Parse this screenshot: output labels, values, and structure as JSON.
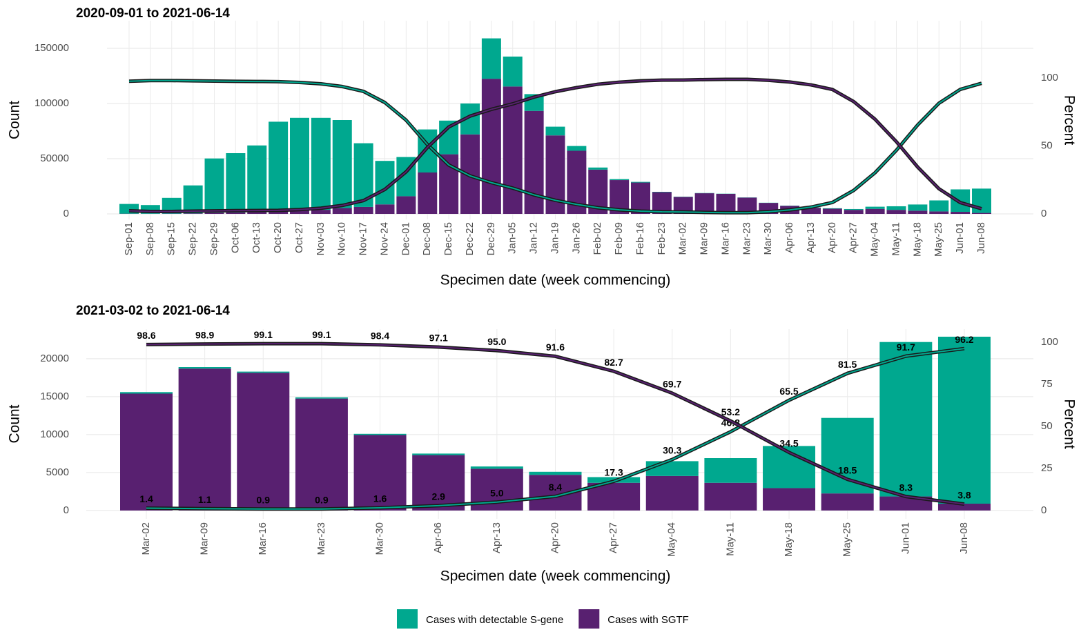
{
  "chart_data": [
    {
      "type": "bar",
      "title": "2020-09-01 to 2021-06-14",
      "x_label": "Specimen date (week commencing)",
      "y_label": "Count",
      "y2_label": "Percent",
      "categories": [
        "Sep-01",
        "Sep-08",
        "Sep-15",
        "Sep-22",
        "Sep-29",
        "Oct-06",
        "Oct-13",
        "Oct-20",
        "Oct-27",
        "Nov-03",
        "Nov-10",
        "Nov-17",
        "Nov-24",
        "Dec-01",
        "Dec-08",
        "Dec-15",
        "Dec-22",
        "Dec-29",
        "Jan-05",
        "Jan-12",
        "Jan-19",
        "Jan-26",
        "Feb-02",
        "Feb-09",
        "Feb-16",
        "Feb-23",
        "Mar-02",
        "Mar-09",
        "Mar-16",
        "Mar-23",
        "Mar-30",
        "Apr-06",
        "Apr-13",
        "Apr-20",
        "Apr-27",
        "May-04",
        "May-11",
        "May-18",
        "May-25",
        "Jun-01",
        "Jun-08"
      ],
      "series": [
        {
          "name": "Cases with SGTF",
          "color": "#582070",
          "values": [
            200,
            150,
            250,
            500,
            1100,
            1300,
            1600,
            2200,
            2800,
            3700,
            5300,
            6300,
            8600,
            16000,
            37500,
            54000,
            72000,
            122400,
            115400,
            93300,
            71100,
            57200,
            40100,
            30600,
            28400,
            19700,
            15400,
            18700,
            18150,
            14750,
            9950,
            7300,
            5500,
            4700,
            3650,
            4550,
            3650,
            2950,
            2250,
            1850,
            900
          ]
        },
        {
          "name": "Cases with detectable S-gene",
          "color": "#00a88f",
          "values": [
            8800,
            7850,
            14250,
            25300,
            49100,
            53700,
            60400,
            81300,
            84200,
            83300,
            79700,
            57700,
            39400,
            35500,
            39000,
            30500,
            28000,
            36600,
            27100,
            15200,
            7900,
            4300,
            1900,
            900,
            600,
            300,
            200,
            200,
            150,
            150,
            150,
            200,
            300,
            400,
            750,
            1950,
            3250,
            5550,
            9950,
            20350,
            22000
          ]
        }
      ],
      "lines": [
        {
          "color": "#00a88f",
          "outline": "#1a1a1a",
          "axis": "y2",
          "values": [
            97.7,
            98.2,
            98.2,
            98,
            97.8,
            97.6,
            97.5,
            97.4,
            96.8,
            95.8,
            93.8,
            90.2,
            82,
            69,
            51,
            36,
            28,
            23,
            19,
            14,
            10,
            7,
            4.5,
            3,
            2,
            1.5,
            1.4,
            1.1,
            0.9,
            0.9,
            1.6,
            2.9,
            5,
            8.4,
            17.3,
            30.3,
            46.8,
            65.5,
            81.5,
            91.7,
            96.2
          ]
        },
        {
          "color": "#582070",
          "outline": "#1a1a1a",
          "axis": "y2",
          "values": [
            2.3,
            1.8,
            1.8,
            2,
            2.2,
            2.4,
            2.5,
            2.6,
            3.2,
            4.2,
            6.2,
            9.8,
            18,
            31,
            49,
            64,
            72,
            77,
            81,
            86,
            90,
            93,
            95.5,
            97,
            98,
            98.5,
            98.6,
            98.9,
            99.1,
            99.1,
            98.4,
            97.1,
            95,
            91.6,
            82.7,
            69.7,
            53.2,
            34.5,
            18.5,
            8.3,
            3.8
          ]
        }
      ],
      "ylim": [
        -5000,
        175000
      ],
      "yticks": [
        0,
        50000,
        100000,
        150000
      ],
      "y2lim": [
        -4.07,
        142.28
      ],
      "y2ticks": [
        0,
        50,
        100
      ],
      "grid": true,
      "legend": "bottom"
    },
    {
      "type": "bar",
      "title": "2021-03-02 to 2021-06-14",
      "x_label": "Specimen date (week commencing)",
      "y_label": "Count",
      "y2_label": "Percent",
      "categories": [
        "Mar-02",
        "Mar-09",
        "Mar-16",
        "Mar-23",
        "Mar-30",
        "Apr-06",
        "Apr-13",
        "Apr-20",
        "Apr-27",
        "May-04",
        "May-11",
        "May-18",
        "May-25",
        "Jun-01",
        "Jun-08"
      ],
      "series": [
        {
          "name": "Cases with SGTF",
          "color": "#582070",
          "values": [
            15400,
            18700,
            18150,
            14750,
            9950,
            7300,
            5500,
            4700,
            3650,
            4550,
            3650,
            2950,
            2250,
            1850,
            900
          ]
        },
        {
          "name": "Cases with detectable S-gene",
          "color": "#00a88f",
          "values": [
            200,
            200,
            150,
            150,
            150,
            200,
            300,
            400,
            750,
            1950,
            3250,
            5550,
            9950,
            20350,
            22000
          ]
        }
      ],
      "lines": [
        {
          "color": "#00a88f",
          "outline": "#1a1a1a",
          "axis": "y2",
          "values": [
            1.4,
            1.1,
            0.9,
            0.9,
            1.6,
            2.9,
            5,
            8.4,
            17.3,
            30.3,
            46.8,
            65.5,
            81.5,
            91.7,
            96.2
          ],
          "value_labels": [
            "1.4",
            "1.1",
            "0.9",
            "0.9",
            "1.6",
            "2.9",
            "5.0",
            "8.4",
            "17.3",
            "30.3",
            "46.8",
            "65.5",
            "81.5",
            "91.7",
            "96.2"
          ]
        },
        {
          "color": "#582070",
          "outline": "#1a1a1a",
          "axis": "y2",
          "values": [
            98.6,
            98.9,
            99.1,
            99.1,
            98.4,
            97.1,
            95,
            91.6,
            82.7,
            69.7,
            53.2,
            34.5,
            18.5,
            8.3,
            3.8
          ],
          "value_labels": [
            "98.6",
            "98.9",
            "99.1",
            "99.1",
            "98.4",
            "97.1",
            "95.0",
            "91.6",
            "82.7",
            "69.7",
            "53.2",
            "34.5",
            "18.5",
            "8.3",
            "3.8"
          ]
        }
      ],
      "ylim": [
        -1100,
        23900
      ],
      "yticks": [
        0,
        5000,
        10000,
        15000,
        20000
      ],
      "y2lim": [
        -4.96,
        107.75
      ],
      "y2ticks": [
        0,
        25,
        50,
        75,
        100
      ],
      "grid": true
    }
  ]
}
